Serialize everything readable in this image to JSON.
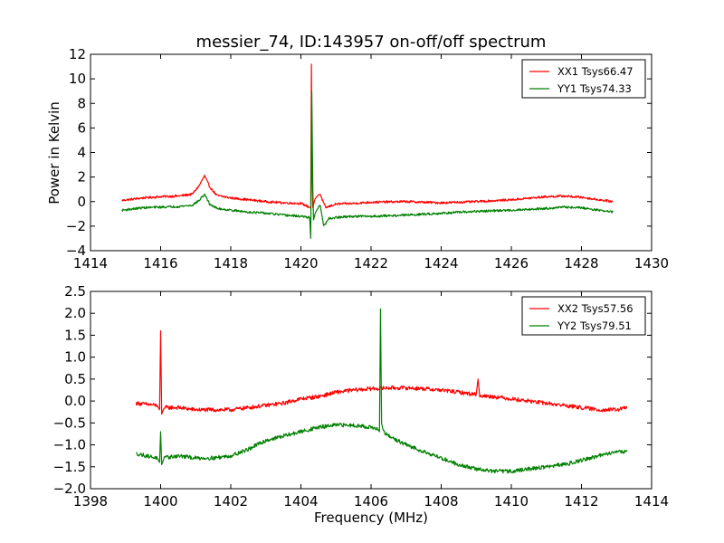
{
  "chart_data": [
    {
      "type": "line",
      "title": "messier_74, ID:143957 on-off/off spectrum",
      "xlabel": "",
      "ylabel": "Power in Kelvin",
      "xlim": [
        1414,
        1430
      ],
      "ylim": [
        -4,
        12
      ],
      "xticks": [
        1414,
        1416,
        1418,
        1420,
        1422,
        1424,
        1426,
        1428,
        1430
      ],
      "yticks": [
        -4,
        -2,
        0,
        2,
        4,
        6,
        8,
        10,
        12
      ],
      "ytick_labels": [
        "−4",
        "−2",
        "0",
        "2",
        "4",
        "6",
        "8",
        "10",
        "12"
      ],
      "legend_position": "top-right",
      "series": [
        {
          "name": "XX1 Tsys66.47",
          "color": "#ff0000",
          "x": [
            1414.9,
            1415.5,
            1416.0,
            1416.5,
            1416.9,
            1417.1,
            1417.25,
            1417.4,
            1417.6,
            1418.0,
            1418.5,
            1419.0,
            1419.5,
            1420.0,
            1420.28,
            1420.3,
            1420.32,
            1420.34,
            1420.4,
            1420.48,
            1420.55,
            1420.7,
            1421.0,
            1421.5,
            1422.0,
            1423.0,
            1424.0,
            1425.0,
            1426.0,
            1427.0,
            1427.5,
            1428.0,
            1428.5,
            1428.9
          ],
          "values": [
            0.1,
            0.3,
            0.4,
            0.45,
            0.6,
            1.3,
            2.1,
            1.2,
            0.5,
            0.3,
            0.15,
            0.0,
            -0.1,
            -0.15,
            -0.5,
            11.2,
            2.0,
            -0.5,
            0.2,
            0.5,
            0.6,
            -0.5,
            -0.2,
            -0.15,
            -0.05,
            0.0,
            -0.1,
            0.0,
            0.15,
            0.4,
            0.45,
            0.35,
            0.15,
            0.0
          ]
        },
        {
          "name": "YY1 Tsys74.33",
          "color": "#008000",
          "x": [
            1414.9,
            1415.5,
            1416.0,
            1416.5,
            1416.9,
            1417.1,
            1417.25,
            1417.4,
            1417.6,
            1418.0,
            1418.5,
            1419.0,
            1419.5,
            1420.0,
            1420.25,
            1420.28,
            1420.31,
            1420.34,
            1420.36,
            1420.42,
            1420.55,
            1420.65,
            1420.8,
            1421.0,
            1421.5,
            1422.0,
            1423.0,
            1424.0,
            1425.0,
            1426.0,
            1427.0,
            1427.5,
            1428.0,
            1428.5,
            1428.9
          ],
          "values": [
            -0.7,
            -0.5,
            -0.45,
            -0.4,
            -0.3,
            0.1,
            0.6,
            -0.2,
            -0.55,
            -0.7,
            -0.85,
            -0.95,
            -1.1,
            -1.2,
            -1.3,
            -3.0,
            9.0,
            1.0,
            -1.5,
            -0.8,
            -0.3,
            -2.0,
            -1.4,
            -1.3,
            -1.2,
            -1.2,
            -1.1,
            -0.95,
            -0.8,
            -0.7,
            -0.55,
            -0.45,
            -0.5,
            -0.7,
            -0.85
          ]
        }
      ]
    },
    {
      "type": "line",
      "title": "",
      "xlabel": "Frequency (MHz)",
      "ylabel": "",
      "xlim": [
        1398,
        1414
      ],
      "ylim": [
        -2.0,
        2.5
      ],
      "xticks": [
        1398,
        1400,
        1402,
        1404,
        1406,
        1408,
        1410,
        1412,
        1414
      ],
      "yticks": [
        -2.0,
        -1.5,
        -1.0,
        -0.5,
        0.0,
        0.5,
        1.0,
        1.5,
        2.0,
        2.5
      ],
      "ytick_labels": [
        "−2.0",
        "−1.5",
        "−1.0",
        "−0.5",
        "0.0",
        "0.5",
        "1.0",
        "1.5",
        "2.0",
        "2.5"
      ],
      "legend_position": "top-right",
      "series": [
        {
          "name": "XX2 Tsys57.56",
          "color": "#ff0000",
          "x": [
            1399.3,
            1399.9,
            1399.97,
            1400.0,
            1400.03,
            1400.1,
            1400.5,
            1401.0,
            1401.5,
            1402.0,
            1402.5,
            1403.0,
            1403.5,
            1404.0,
            1404.5,
            1405.0,
            1405.5,
            1406.0,
            1406.5,
            1407.0,
            1407.5,
            1408.0,
            1408.5,
            1409.0,
            1409.05,
            1409.1,
            1409.5,
            1410.0,
            1410.5,
            1411.0,
            1411.5,
            1412.0,
            1412.5,
            1413.0,
            1413.3
          ],
          "values": [
            -0.05,
            -0.1,
            -0.2,
            1.6,
            -0.3,
            -0.15,
            -0.15,
            -0.2,
            -0.2,
            -0.2,
            -0.15,
            -0.1,
            -0.05,
            0.05,
            0.1,
            0.2,
            0.25,
            0.28,
            0.3,
            0.3,
            0.28,
            0.25,
            0.2,
            0.15,
            0.5,
            0.12,
            0.1,
            0.05,
            0.0,
            -0.05,
            -0.1,
            -0.15,
            -0.2,
            -0.2,
            -0.15
          ]
        },
        {
          "name": "YY2 Tsys79.51",
          "color": "#008000",
          "x": [
            1399.3,
            1399.9,
            1399.97,
            1400.0,
            1400.03,
            1400.1,
            1400.5,
            1401.0,
            1401.5,
            1402.0,
            1402.5,
            1403.0,
            1403.5,
            1404.0,
            1404.5,
            1405.0,
            1405.5,
            1406.0,
            1406.2,
            1406.24,
            1406.27,
            1406.3,
            1406.35,
            1406.5,
            1407.0,
            1407.5,
            1408.0,
            1408.5,
            1409.0,
            1409.5,
            1410.0,
            1410.5,
            1411.0,
            1411.5,
            1412.0,
            1412.5,
            1413.0,
            1413.3
          ],
          "values": [
            -1.2,
            -1.3,
            -1.4,
            -0.7,
            -1.45,
            -1.3,
            -1.25,
            -1.3,
            -1.3,
            -1.25,
            -1.1,
            -0.9,
            -0.8,
            -0.7,
            -0.6,
            -0.55,
            -0.55,
            -0.6,
            -0.65,
            -0.7,
            2.1,
            -0.5,
            -0.7,
            -0.8,
            -1.0,
            -1.15,
            -1.3,
            -1.45,
            -1.55,
            -1.6,
            -1.6,
            -1.55,
            -1.5,
            -1.45,
            -1.35,
            -1.25,
            -1.15,
            -1.15
          ]
        }
      ]
    }
  ]
}
